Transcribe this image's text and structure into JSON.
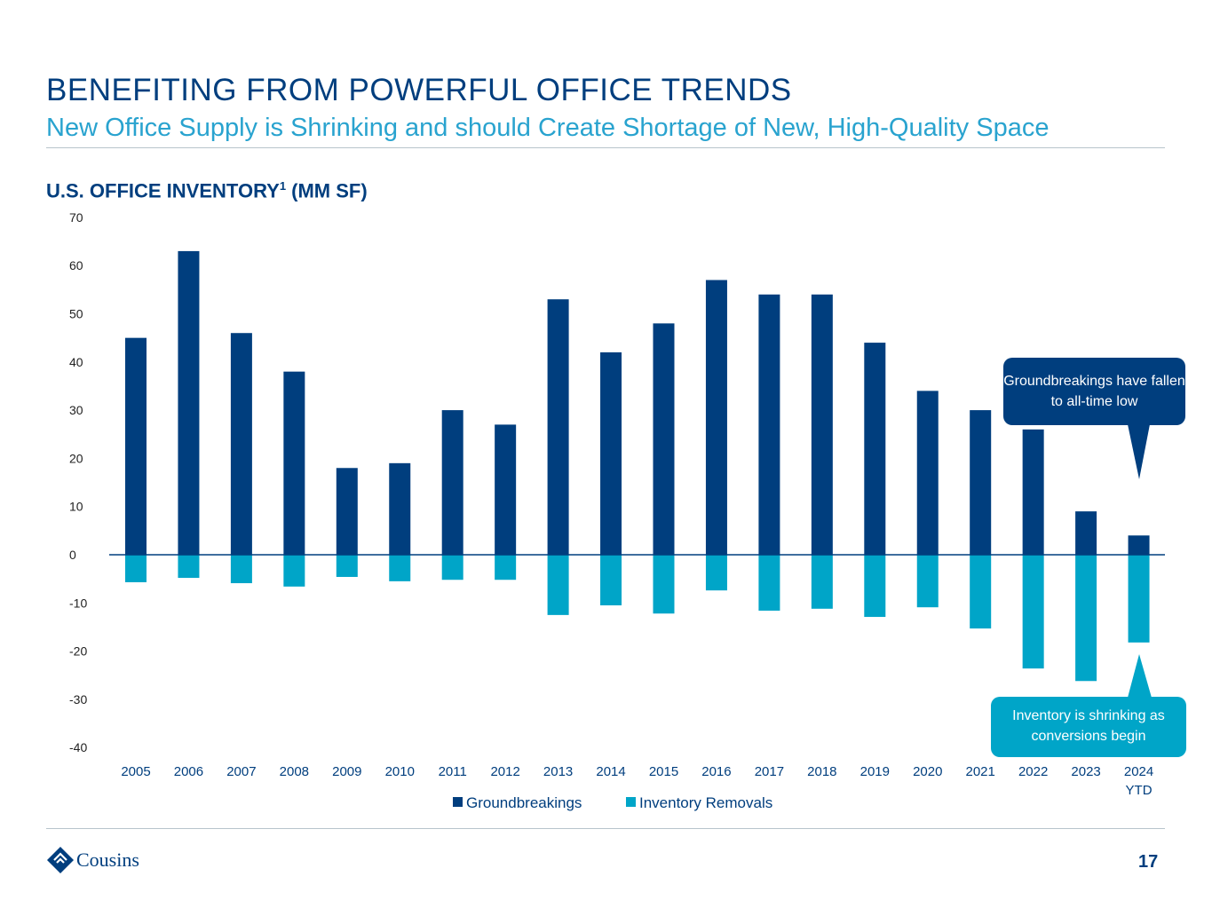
{
  "header": {
    "title": "BENEFITING FROM POWERFUL OFFICE TRENDS",
    "subtitle": "New Office Supply is Shrinking and should Create Shortage of New, High-Quality Space"
  },
  "chart_title": "U.S. OFFICE INVENTORY",
  "chart_title_sup": "1",
  "chart_title_unit": " (MM SF)",
  "callouts": {
    "top": "Groundbreakings have fallen to all-time low",
    "bottom": "Inventory is shrinking as conversions begin"
  },
  "footer": {
    "logo": "Cousins",
    "page": "17"
  },
  "colors": {
    "groundbreakings": "#003e7e",
    "removals": "#00a5c8"
  },
  "chart_data": {
    "type": "bar",
    "title": "U.S. OFFICE INVENTORY (MM SF)",
    "categories": [
      "2005",
      "2006",
      "2007",
      "2008",
      "2009",
      "2010",
      "2011",
      "2012",
      "2013",
      "2014",
      "2015",
      "2016",
      "2017",
      "2018",
      "2019",
      "2020",
      "2021",
      "2022",
      "2023",
      "2024 YTD"
    ],
    "series": [
      {
        "name": "Groundbreakings",
        "values": [
          45,
          63,
          46,
          38,
          18,
          19,
          30,
          27,
          53,
          42,
          48,
          57,
          54,
          54,
          44,
          34,
          30,
          26,
          9,
          4
        ]
      },
      {
        "name": "Inventory Removals",
        "values": [
          -5.7,
          -4.8,
          -5.9,
          -6.6,
          -4.6,
          -5.5,
          -5.2,
          -5.2,
          -12.5,
          -10.5,
          -12.2,
          -7.4,
          -11.6,
          -11.2,
          -12.9,
          -10.9,
          -15.3,
          -23.6,
          -26.2,
          -18.2
        ]
      }
    ],
    "ylim": [
      -40,
      70
    ],
    "yticks": [
      70,
      60,
      50,
      40,
      30,
      20,
      10,
      0,
      -10,
      -20,
      -30,
      -40
    ],
    "legend": "bottom-center",
    "grid": false
  }
}
